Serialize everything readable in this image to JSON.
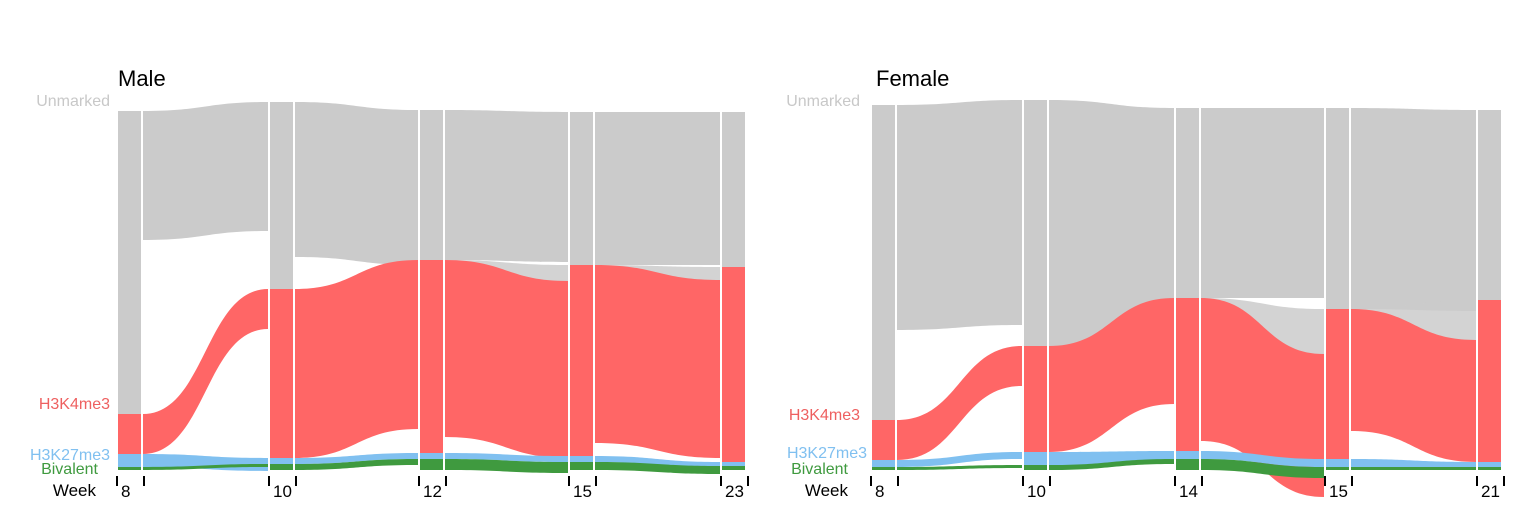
{
  "colors": {
    "Unmarked": "#cbcbcb",
    "H3K4me3": "#ff6666",
    "H3K27me3": "#80c0f0",
    "Bivalent": "#3f9a3f"
  },
  "legend": {
    "week_label": "Week"
  },
  "chart_data": [
    {
      "type": "sankey",
      "title": "Male",
      "xlabel": "Week",
      "categories": [
        "Unmarked",
        "H3K4me3",
        "H3K27me3",
        "Bivalent"
      ],
      "weeks": [
        "8",
        "10",
        "12",
        "15",
        "23"
      ],
      "node_sizes": [
        [
          303,
          40,
          13,
          3
        ],
        [
          187,
          169,
          6,
          6
        ],
        [
          150,
          193,
          6,
          11
        ],
        [
          153,
          191,
          6,
          8
        ],
        [
          155,
          195,
          4,
          4
        ]
      ],
      "transitions": [
        [
          [
            129,
            0,
            0,
            0
          ],
          [
            0,
            40,
            0,
            0
          ],
          [
            0,
            0,
            13,
            0
          ],
          [
            0,
            0,
            0,
            3
          ]
        ],
        [
          [
            155,
            0,
            0,
            0
          ],
          [
            0,
            169,
            0,
            0
          ],
          [
            0,
            0,
            6,
            0
          ],
          [
            0,
            0,
            0,
            6
          ]
        ],
        [
          [
            150,
            16,
            0,
            0
          ],
          [
            0,
            177,
            0,
            0
          ],
          [
            0,
            0,
            6,
            0
          ],
          [
            0,
            0,
            0,
            11
          ]
        ],
        [
          [
            153,
            13,
            0,
            0
          ],
          [
            0,
            178,
            0,
            0
          ],
          [
            0,
            0,
            6,
            0
          ],
          [
            0,
            0,
            0,
            8
          ]
        ]
      ]
    },
    {
      "type": "sankey",
      "title": "Female",
      "xlabel": "Week",
      "categories": [
        "Unmarked",
        "H3K4me3",
        "H3K27me3",
        "Bivalent"
      ],
      "weeks": [
        "8",
        "10",
        "14",
        "15",
        "21"
      ],
      "node_sizes": [
        [
          315,
          40,
          7,
          3
        ],
        [
          246,
          106,
          13,
          5
        ],
        [
          190,
          153,
          8,
          11
        ],
        [
          201,
          150,
          8,
          3
        ],
        [
          190,
          162,
          5,
          3
        ]
      ],
      "transitions": [
        [
          [
            225,
            0,
            0,
            0
          ],
          [
            0,
            40,
            0,
            0
          ],
          [
            0,
            0,
            7,
            0
          ],
          [
            0,
            0,
            0,
            3
          ]
        ],
        [
          [
            246,
            0,
            0,
            0
          ],
          [
            0,
            106,
            0,
            0
          ],
          [
            0,
            0,
            13,
            0
          ],
          [
            0,
            0,
            0,
            5
          ]
        ],
        [
          [
            190,
            45,
            0,
            0
          ],
          [
            0,
            143,
            0,
            0
          ],
          [
            0,
            0,
            8,
            0
          ],
          [
            0,
            0,
            0,
            11
          ]
        ],
        [
          [
            201,
            40,
            0,
            0
          ],
          [
            0,
            122,
            0,
            0
          ],
          [
            0,
            0,
            8,
            0
          ],
          [
            0,
            0,
            0,
            3
          ]
        ]
      ]
    }
  ]
}
